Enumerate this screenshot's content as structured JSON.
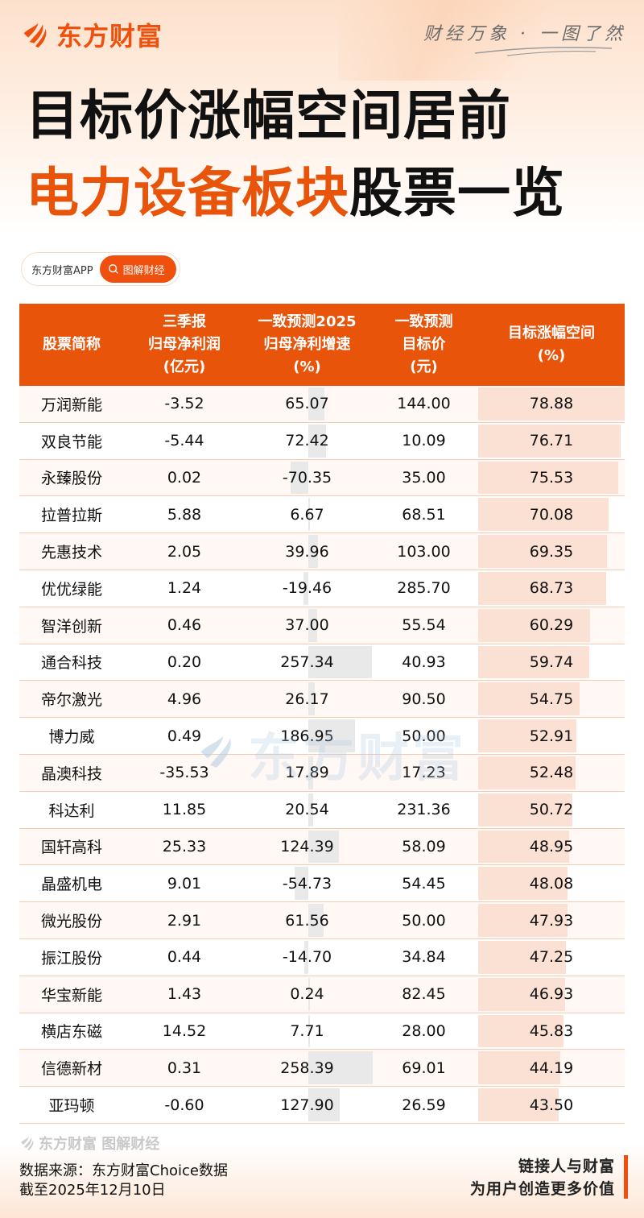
{
  "header": {
    "brand_name": "东方财富",
    "slogan": "财经万象 · 一图了然",
    "title_line1": "目标价涨幅空间居前",
    "title_line2_highlight": "电力设备板块",
    "title_line2_rest": "股票一览",
    "app_name": "东方财富APP",
    "search_label": "图解财经"
  },
  "colors": {
    "brand_orange": "#e9540b",
    "growth_bar": "#e9e9e9",
    "upside_bar": "#fbe1d3",
    "row_alt": "#fff8f4",
    "divider": "#f6ccb0"
  },
  "table": {
    "headers": [
      {
        "lines": [
          "股票简称"
        ]
      },
      {
        "lines": [
          "三季报",
          "归母净利润",
          "(亿元)"
        ]
      },
      {
        "lines": [
          "一致预测2025",
          "归母净利增速",
          "(%)"
        ]
      },
      {
        "lines": [
          "一致预测",
          "目标价",
          "(元)"
        ]
      },
      {
        "lines": [
          "目标涨幅空间",
          "(%)"
        ]
      }
    ],
    "rows": [
      {
        "name": "万润新能",
        "q3_profit": "-3.52",
        "growth_2025": "65.07",
        "target_price": "144.00",
        "upside": "78.88"
      },
      {
        "name": "双良节能",
        "q3_profit": "-5.44",
        "growth_2025": "72.42",
        "target_price": "10.09",
        "upside": "76.71"
      },
      {
        "name": "永臻股份",
        "q3_profit": "0.02",
        "growth_2025": "-70.35",
        "target_price": "35.00",
        "upside": "75.53"
      },
      {
        "name": "拉普拉斯",
        "q3_profit": "5.88",
        "growth_2025": "6.67",
        "target_price": "68.51",
        "upside": "70.08"
      },
      {
        "name": "先惠技术",
        "q3_profit": "2.05",
        "growth_2025": "39.96",
        "target_price": "103.00",
        "upside": "69.35"
      },
      {
        "name": "优优绿能",
        "q3_profit": "1.24",
        "growth_2025": "-19.46",
        "target_price": "285.70",
        "upside": "68.73"
      },
      {
        "name": "智洋创新",
        "q3_profit": "0.46",
        "growth_2025": "37.00",
        "target_price": "55.54",
        "upside": "60.29"
      },
      {
        "name": "通合科技",
        "q3_profit": "0.20",
        "growth_2025": "257.34",
        "target_price": "40.93",
        "upside": "59.74"
      },
      {
        "name": "帝尔激光",
        "q3_profit": "4.96",
        "growth_2025": "26.17",
        "target_price": "90.50",
        "upside": "54.75"
      },
      {
        "name": "博力威",
        "q3_profit": "0.49",
        "growth_2025": "186.95",
        "target_price": "50.00",
        "upside": "52.91"
      },
      {
        "name": "晶澳科技",
        "q3_profit": "-35.53",
        "growth_2025": "17.89",
        "target_price": "17.23",
        "upside": "52.48"
      },
      {
        "name": "科达利",
        "q3_profit": "11.85",
        "growth_2025": "20.54",
        "target_price": "231.36",
        "upside": "50.72"
      },
      {
        "name": "国轩高科",
        "q3_profit": "25.33",
        "growth_2025": "124.39",
        "target_price": "58.09",
        "upside": "48.95"
      },
      {
        "name": "晶盛机电",
        "q3_profit": "9.01",
        "growth_2025": "-54.73",
        "target_price": "54.45",
        "upside": "48.08"
      },
      {
        "name": "微光股份",
        "q3_profit": "2.91",
        "growth_2025": "61.56",
        "target_price": "50.00",
        "upside": "47.93"
      },
      {
        "name": "振江股份",
        "q3_profit": "0.44",
        "growth_2025": "-14.70",
        "target_price": "34.84",
        "upside": "47.25"
      },
      {
        "name": "华宝新能",
        "q3_profit": "1.43",
        "growth_2025": "0.24",
        "target_price": "82.45",
        "upside": "46.93"
      },
      {
        "name": "横店东磁",
        "q3_profit": "14.52",
        "growth_2025": "7.71",
        "target_price": "28.00",
        "upside": "45.83"
      },
      {
        "name": "信德新材",
        "q3_profit": "0.31",
        "growth_2025": "258.39",
        "target_price": "69.01",
        "upside": "44.19"
      },
      {
        "name": "亚玛顿",
        "q3_profit": "-0.60",
        "growth_2025": "127.90",
        "target_price": "26.59",
        "upside": "43.50"
      }
    ]
  },
  "chart_data": {
    "type": "table",
    "title": "目标价涨幅空间居前电力设备板块股票一览",
    "columns": [
      "股票简称",
      "三季报归母净利润(亿元)",
      "一致预测2025归母净利增速(%)",
      "一致预测目标价(元)",
      "目标涨幅空间(%)"
    ],
    "categories": [
      "万润新能",
      "双良节能",
      "永臻股份",
      "拉普拉斯",
      "先惠技术",
      "优优绿能",
      "智洋创新",
      "通合科技",
      "帝尔激光",
      "博力威",
      "晶澳科技",
      "科达利",
      "国轩高科",
      "晶盛机电",
      "微光股份",
      "振江股份",
      "华宝新能",
      "横店东磁",
      "信德新材",
      "亚玛顿"
    ],
    "series": [
      {
        "name": "三季报归母净利润(亿元)",
        "values": [
          -3.52,
          -5.44,
          0.02,
          5.88,
          2.05,
          1.24,
          0.46,
          0.2,
          4.96,
          0.49,
          -35.53,
          11.85,
          25.33,
          9.01,
          2.91,
          0.44,
          1.43,
          14.52,
          0.31,
          -0.6
        ]
      },
      {
        "name": "一致预测2025归母净利增速(%)",
        "values": [
          65.07,
          72.42,
          -70.35,
          6.67,
          39.96,
          -19.46,
          37.0,
          257.34,
          26.17,
          186.95,
          17.89,
          20.54,
          124.39,
          -54.73,
          61.56,
          -14.7,
          0.24,
          7.71,
          258.39,
          127.9
        ]
      },
      {
        "name": "一致预测目标价(元)",
        "values": [
          144.0,
          10.09,
          35.0,
          68.51,
          103.0,
          285.7,
          55.54,
          40.93,
          90.5,
          50.0,
          17.23,
          231.36,
          58.09,
          54.45,
          50.0,
          34.84,
          82.45,
          28.0,
          69.01,
          26.59
        ]
      },
      {
        "name": "目标涨幅空间(%)",
        "values": [
          78.88,
          76.71,
          75.53,
          70.08,
          69.35,
          68.73,
          60.29,
          59.74,
          54.75,
          52.91,
          52.48,
          50.72,
          48.95,
          48.08,
          47.93,
          47.25,
          46.93,
          45.83,
          44.19,
          43.5
        ]
      }
    ]
  },
  "footer": {
    "brand": "东方财富 图解财经",
    "source": "数据来源：东方财富Choice数据",
    "date": "截至2025年12月10日",
    "slogan_line1": "链接人与财富",
    "slogan_line2": "为用户创造更多价值"
  }
}
